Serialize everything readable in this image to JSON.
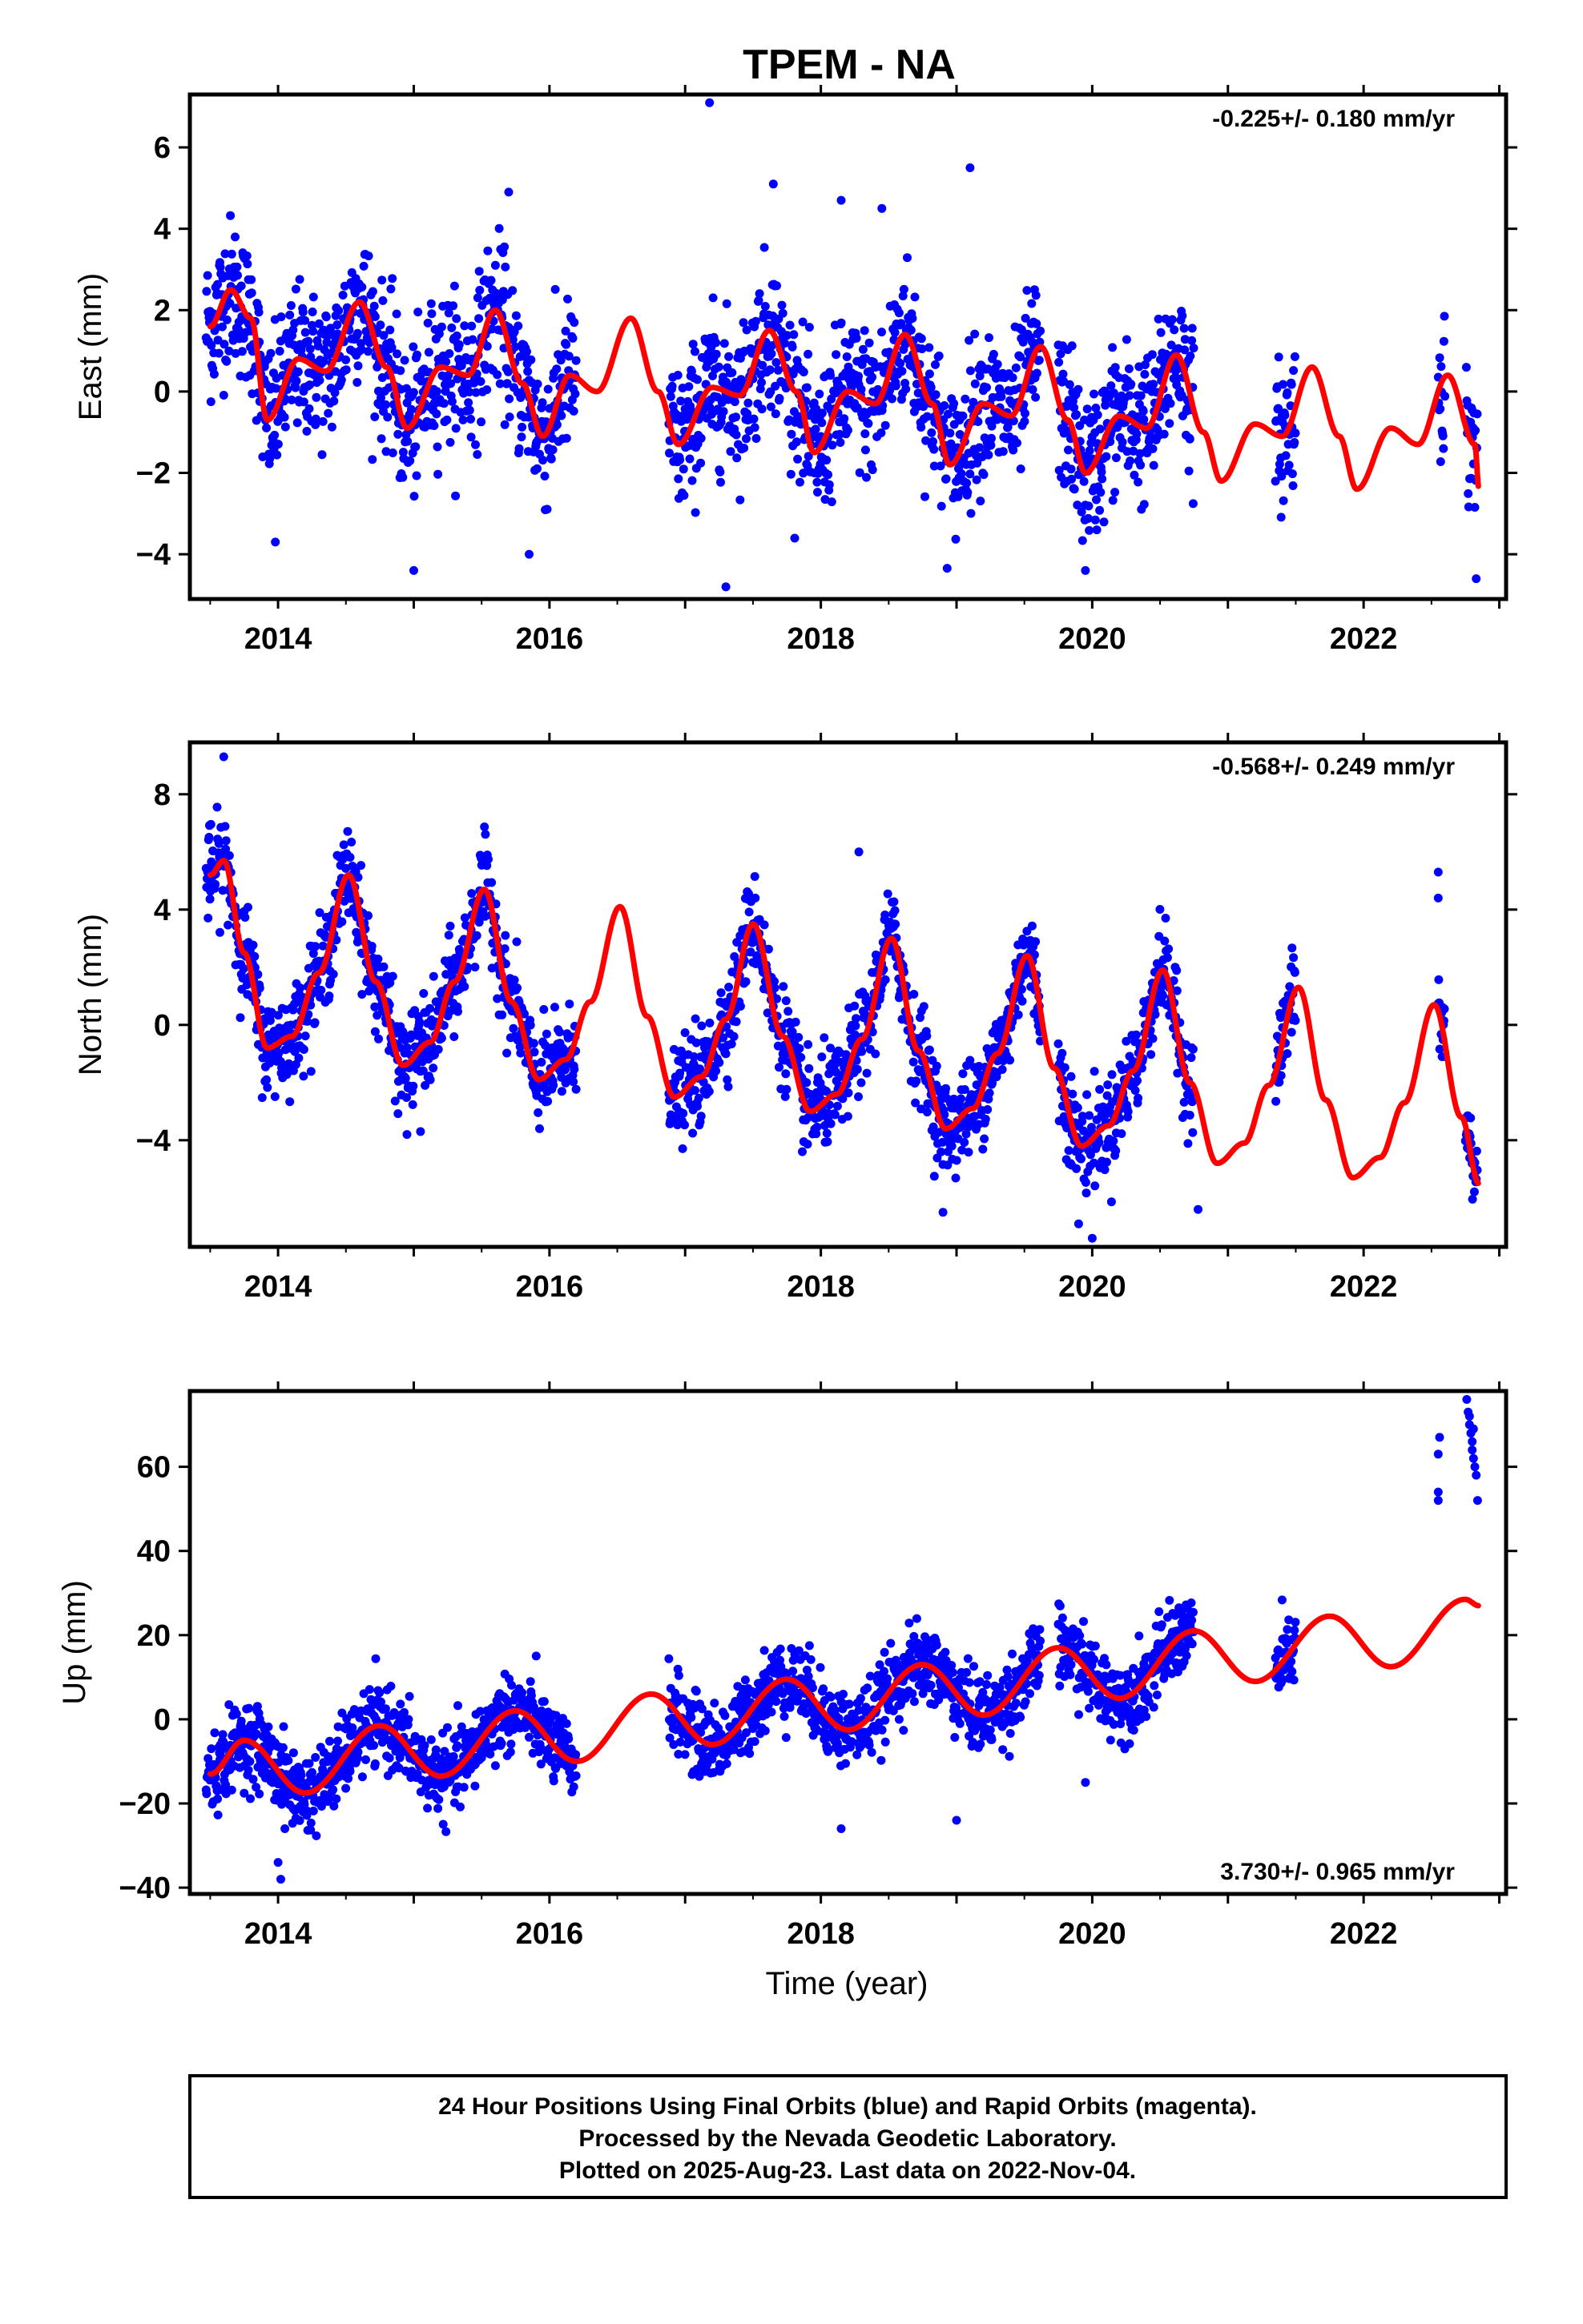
{
  "title": "TPEM - NA",
  "xlabel": "Time (year)",
  "footer": {
    "line1": "24 Hour Positions Using Final Orbits (blue) and Rapid Orbits (magenta).",
    "line2": "Processed by the Nevada Geodetic Laboratory.",
    "line3": "Plotted on 2025-Aug-23. Last data on 2022-Nov-04."
  },
  "colors": {
    "points": "#0000ff",
    "model": "#ff0000",
    "frame": "#000000"
  },
  "chart_data": [
    {
      "type": "scatter",
      "ylabel": "East (mm)",
      "rate_text": "-0.225+/- 0.180 mm/yr",
      "rate_position": "top-right",
      "xlim": [
        2013.35,
        2023.05
      ],
      "ylim": [
        -5.1,
        7.3
      ],
      "x_ticks": [
        2014,
        2016,
        2018,
        2020,
        2022
      ],
      "y_ticks": [
        -4,
        -2,
        0,
        2,
        4,
        6
      ],
      "trend": {
        "rate_mm_per_yr": -0.225,
        "y_at_2013_5": 1.4
      },
      "seasonal": [
        {
          "t": 2013.5,
          "v": 1.6
        },
        {
          "t": 2013.65,
          "v": 2.5
        },
        {
          "t": 2013.8,
          "v": 1.8
        },
        {
          "t": 2013.92,
          "v": -0.7
        },
        {
          "t": 2014.15,
          "v": 0.8
        },
        {
          "t": 2014.35,
          "v": 0.5
        },
        {
          "t": 2014.6,
          "v": 2.2
        },
        {
          "t": 2014.8,
          "v": 0.6
        },
        {
          "t": 2014.95,
          "v": -0.9
        },
        {
          "t": 2015.2,
          "v": 0.6
        },
        {
          "t": 2015.4,
          "v": 0.4
        },
        {
          "t": 2015.6,
          "v": 2.0
        },
        {
          "t": 2015.8,
          "v": 0.2
        },
        {
          "t": 2015.95,
          "v": -1.1
        },
        {
          "t": 2016.15,
          "v": 0.4
        },
        {
          "t": 2016.35,
          "v": 0.0
        },
        {
          "t": 2016.6,
          "v": 1.8
        },
        {
          "t": 2016.8,
          "v": 0.0
        },
        {
          "t": 2016.95,
          "v": -1.3
        },
        {
          "t": 2017.2,
          "v": 0.1
        },
        {
          "t": 2017.4,
          "v": -0.1
        },
        {
          "t": 2017.62,
          "v": 1.5
        },
        {
          "t": 2017.82,
          "v": 0.0
        },
        {
          "t": 2017.95,
          "v": -1.5
        },
        {
          "t": 2018.2,
          "v": 0.0
        },
        {
          "t": 2018.4,
          "v": -0.3
        },
        {
          "t": 2018.62,
          "v": 1.4
        },
        {
          "t": 2018.82,
          "v": -0.3
        },
        {
          "t": 2018.95,
          "v": -1.8
        },
        {
          "t": 2019.2,
          "v": -0.3
        },
        {
          "t": 2019.4,
          "v": -0.6
        },
        {
          "t": 2019.62,
          "v": 1.1
        },
        {
          "t": 2019.82,
          "v": -0.7
        },
        {
          "t": 2019.95,
          "v": -2.0
        },
        {
          "t": 2020.2,
          "v": -0.6
        },
        {
          "t": 2020.4,
          "v": -0.9
        },
        {
          "t": 2020.62,
          "v": 0.9
        },
        {
          "t": 2020.82,
          "v": -1.0
        },
        {
          "t": 2020.95,
          "v": -2.2
        },
        {
          "t": 2021.2,
          "v": -0.8
        },
        {
          "t": 2021.4,
          "v": -1.1
        },
        {
          "t": 2021.62,
          "v": 0.6
        },
        {
          "t": 2021.82,
          "v": -1.1
        },
        {
          "t": 2021.95,
          "v": -2.4
        },
        {
          "t": 2022.2,
          "v": -0.9
        },
        {
          "t": 2022.4,
          "v": -1.3
        },
        {
          "t": 2022.62,
          "v": 0.4
        },
        {
          "t": 2022.82,
          "v": -1.3
        },
        {
          "t": 2022.85,
          "v": -2.4
        }
      ],
      "data_segments": [
        [
          2013.47,
          2016.2
        ],
        [
          2016.88,
          2019.62
        ],
        [
          2019.75,
          2020.75
        ],
        [
          2021.35,
          2021.5
        ],
        [
          2022.55,
          2022.6
        ],
        [
          2022.75,
          2022.84
        ]
      ],
      "scatter_sd": 0.9,
      "outliers": [
        {
          "t": 2017.18,
          "v": 7.1
        },
        {
          "t": 2017.3,
          "v": -4.8
        },
        {
          "t": 2019.1,
          "v": 5.5
        },
        {
          "t": 2018.15,
          "v": 4.7
        },
        {
          "t": 2018.45,
          "v": 4.5
        },
        {
          "t": 2013.98,
          "v": -3.7
        },
        {
          "t": 2015.0,
          "v": -4.4
        },
        {
          "t": 2015.85,
          "v": -4.0
        },
        {
          "t": 2019.95,
          "v": -4.4
        },
        {
          "t": 2022.83,
          "v": -4.6
        },
        {
          "t": 2015.7,
          "v": 4.9
        },
        {
          "t": 2017.65,
          "v": 5.1
        }
      ]
    },
    {
      "type": "scatter",
      "ylabel": "North (mm)",
      "rate_text": "-0.568+/- 0.249 mm/yr",
      "rate_position": "top-right",
      "xlim": [
        2013.35,
        2023.05
      ],
      "ylim": [
        -7.7,
        9.8
      ],
      "x_ticks": [
        2014,
        2016,
        2018,
        2020,
        2022
      ],
      "y_ticks": [
        -4,
        0,
        4,
        8
      ],
      "trend": {
        "rate_mm_per_yr": -0.568,
        "y_at_2013_5": 2.0
      },
      "seasonal": [
        {
          "t": 2013.5,
          "v": 5.2
        },
        {
          "t": 2013.6,
          "v": 5.7
        },
        {
          "t": 2013.75,
          "v": 2.5
        },
        {
          "t": 2013.92,
          "v": -0.8
        },
        {
          "t": 2014.1,
          "v": -0.4
        },
        {
          "t": 2014.3,
          "v": 1.8
        },
        {
          "t": 2014.52,
          "v": 5.2
        },
        {
          "t": 2014.72,
          "v": 1.5
        },
        {
          "t": 2014.92,
          "v": -1.4
        },
        {
          "t": 2015.12,
          "v": -0.6
        },
        {
          "t": 2015.3,
          "v": 1.5
        },
        {
          "t": 2015.52,
          "v": 4.7
        },
        {
          "t": 2015.72,
          "v": 0.8
        },
        {
          "t": 2015.92,
          "v": -1.9
        },
        {
          "t": 2016.12,
          "v": -1.2
        },
        {
          "t": 2016.3,
          "v": 0.8
        },
        {
          "t": 2016.52,
          "v": 4.1
        },
        {
          "t": 2016.72,
          "v": 0.3
        },
        {
          "t": 2016.92,
          "v": -2.5
        },
        {
          "t": 2017.12,
          "v": -1.8
        },
        {
          "t": 2017.3,
          "v": 0.2
        },
        {
          "t": 2017.5,
          "v": 3.5
        },
        {
          "t": 2017.72,
          "v": -0.4
        },
        {
          "t": 2017.92,
          "v": -3.0
        },
        {
          "t": 2018.12,
          "v": -2.4
        },
        {
          "t": 2018.3,
          "v": -0.5
        },
        {
          "t": 2018.52,
          "v": 3.0
        },
        {
          "t": 2018.72,
          "v": -0.9
        },
        {
          "t": 2018.92,
          "v": -3.6
        },
        {
          "t": 2019.12,
          "v": -2.9
        },
        {
          "t": 2019.3,
          "v": -1.0
        },
        {
          "t": 2019.52,
          "v": 2.4
        },
        {
          "t": 2019.72,
          "v": -1.5
        },
        {
          "t": 2019.92,
          "v": -4.2
        },
        {
          "t": 2020.12,
          "v": -3.5
        },
        {
          "t": 2020.3,
          "v": -1.6
        },
        {
          "t": 2020.52,
          "v": 1.9
        },
        {
          "t": 2020.72,
          "v": -2.0
        },
        {
          "t": 2020.92,
          "v": -4.8
        },
        {
          "t": 2021.12,
          "v": -4.1
        },
        {
          "t": 2021.3,
          "v": -2.1
        },
        {
          "t": 2021.52,
          "v": 1.3
        },
        {
          "t": 2021.72,
          "v": -2.6
        },
        {
          "t": 2021.92,
          "v": -5.3
        },
        {
          "t": 2022.12,
          "v": -4.6
        },
        {
          "t": 2022.3,
          "v": -2.7
        },
        {
          "t": 2022.52,
          "v": 0.7
        },
        {
          "t": 2022.72,
          "v": -3.2
        },
        {
          "t": 2022.85,
          "v": -5.5
        }
      ],
      "data_segments": [
        [
          2013.47,
          2016.2
        ],
        [
          2016.88,
          2019.62
        ],
        [
          2019.75,
          2020.75
        ],
        [
          2021.35,
          2021.5
        ],
        [
          2022.55,
          2022.6
        ],
        [
          2022.75,
          2022.84
        ]
      ],
      "scatter_sd": 0.8,
      "outliers": [
        {
          "t": 2013.6,
          "v": 9.3
        },
        {
          "t": 2018.28,
          "v": 6.0
        },
        {
          "t": 2020.0,
          "v": -7.4
        },
        {
          "t": 2019.9,
          "v": -6.9
        },
        {
          "t": 2022.55,
          "v": 5.3
        },
        {
          "t": 2022.55,
          "v": 4.4
        },
        {
          "t": 2020.78,
          "v": -6.4
        },
        {
          "t": 2018.9,
          "v": -6.5
        },
        {
          "t": 2014.95,
          "v": -3.8
        },
        {
          "t": 2015.05,
          "v": -3.7
        }
      ]
    },
    {
      "type": "scatter",
      "ylabel": "Up (mm)",
      "rate_text": "3.730+/- 0.965 mm/yr",
      "rate_position": "bottom-right",
      "xlim": [
        2013.35,
        2023.05
      ],
      "ylim": [
        -41.5,
        78
      ],
      "x_ticks": [
        2014,
        2016,
        2018,
        2020,
        2022
      ],
      "y_ticks": [
        -40,
        -20,
        0,
        20,
        40,
        60
      ],
      "trend": {
        "rate_mm_per_yr": 3.73,
        "y_at_2013_5": -11.0
      },
      "seasonal": [
        {
          "t": 2013.5,
          "v": -13.0
        },
        {
          "t": 2013.75,
          "v": -5.0
        },
        {
          "t": 2014.2,
          "v": -17.5
        },
        {
          "t": 2014.75,
          "v": -1.5
        },
        {
          "t": 2015.2,
          "v": -13.5
        },
        {
          "t": 2015.75,
          "v": 2.0
        },
        {
          "t": 2016.2,
          "v": -10.0
        },
        {
          "t": 2016.75,
          "v": 6.0
        },
        {
          "t": 2017.2,
          "v": -6.0
        },
        {
          "t": 2017.75,
          "v": 9.5
        },
        {
          "t": 2018.2,
          "v": -2.5
        },
        {
          "t": 2018.75,
          "v": 13.0
        },
        {
          "t": 2019.2,
          "v": 1.0
        },
        {
          "t": 2019.75,
          "v": 17.0
        },
        {
          "t": 2020.2,
          "v": 5.0
        },
        {
          "t": 2020.75,
          "v": 21.0
        },
        {
          "t": 2021.2,
          "v": 9.0
        },
        {
          "t": 2021.75,
          "v": 24.5
        },
        {
          "t": 2022.2,
          "v": 12.5
        },
        {
          "t": 2022.75,
          "v": 28.5
        },
        {
          "t": 2022.85,
          "v": 27.0
        }
      ],
      "data_segments": [
        [
          2013.47,
          2016.2
        ],
        [
          2016.88,
          2019.62
        ],
        [
          2019.75,
          2020.75
        ],
        [
          2021.35,
          2021.5
        ]
      ],
      "scatter_sd": 4.5,
      "outliers": [
        {
          "t": 2014.02,
          "v": -38.0
        },
        {
          "t": 2014.0,
          "v": -34.0
        },
        {
          "t": 2014.05,
          "v": -26.0
        },
        {
          "t": 2018.15,
          "v": -26.0
        },
        {
          "t": 2019.0,
          "v": -24.0
        },
        {
          "t": 2019.95,
          "v": -15.0
        },
        {
          "t": 2022.55,
          "v": 52.0
        },
        {
          "t": 2022.55,
          "v": 54.0
        },
        {
          "t": 2022.55,
          "v": 63.0
        },
        {
          "t": 2022.56,
          "v": 67.0
        },
        {
          "t": 2022.76,
          "v": 76.0
        },
        {
          "t": 2022.77,
          "v": 73.0
        },
        {
          "t": 2022.78,
          "v": 70.0
        },
        {
          "t": 2022.79,
          "v": 68.0
        },
        {
          "t": 2022.8,
          "v": 66.0
        },
        {
          "t": 2022.8,
          "v": 64.0
        },
        {
          "t": 2022.81,
          "v": 62.0
        },
        {
          "t": 2022.82,
          "v": 60.0
        },
        {
          "t": 2022.83,
          "v": 58.0
        },
        {
          "t": 2022.84,
          "v": 52.0
        },
        {
          "t": 2022.78,
          "v": 72.0
        },
        {
          "t": 2022.81,
          "v": 69.0
        }
      ]
    }
  ]
}
